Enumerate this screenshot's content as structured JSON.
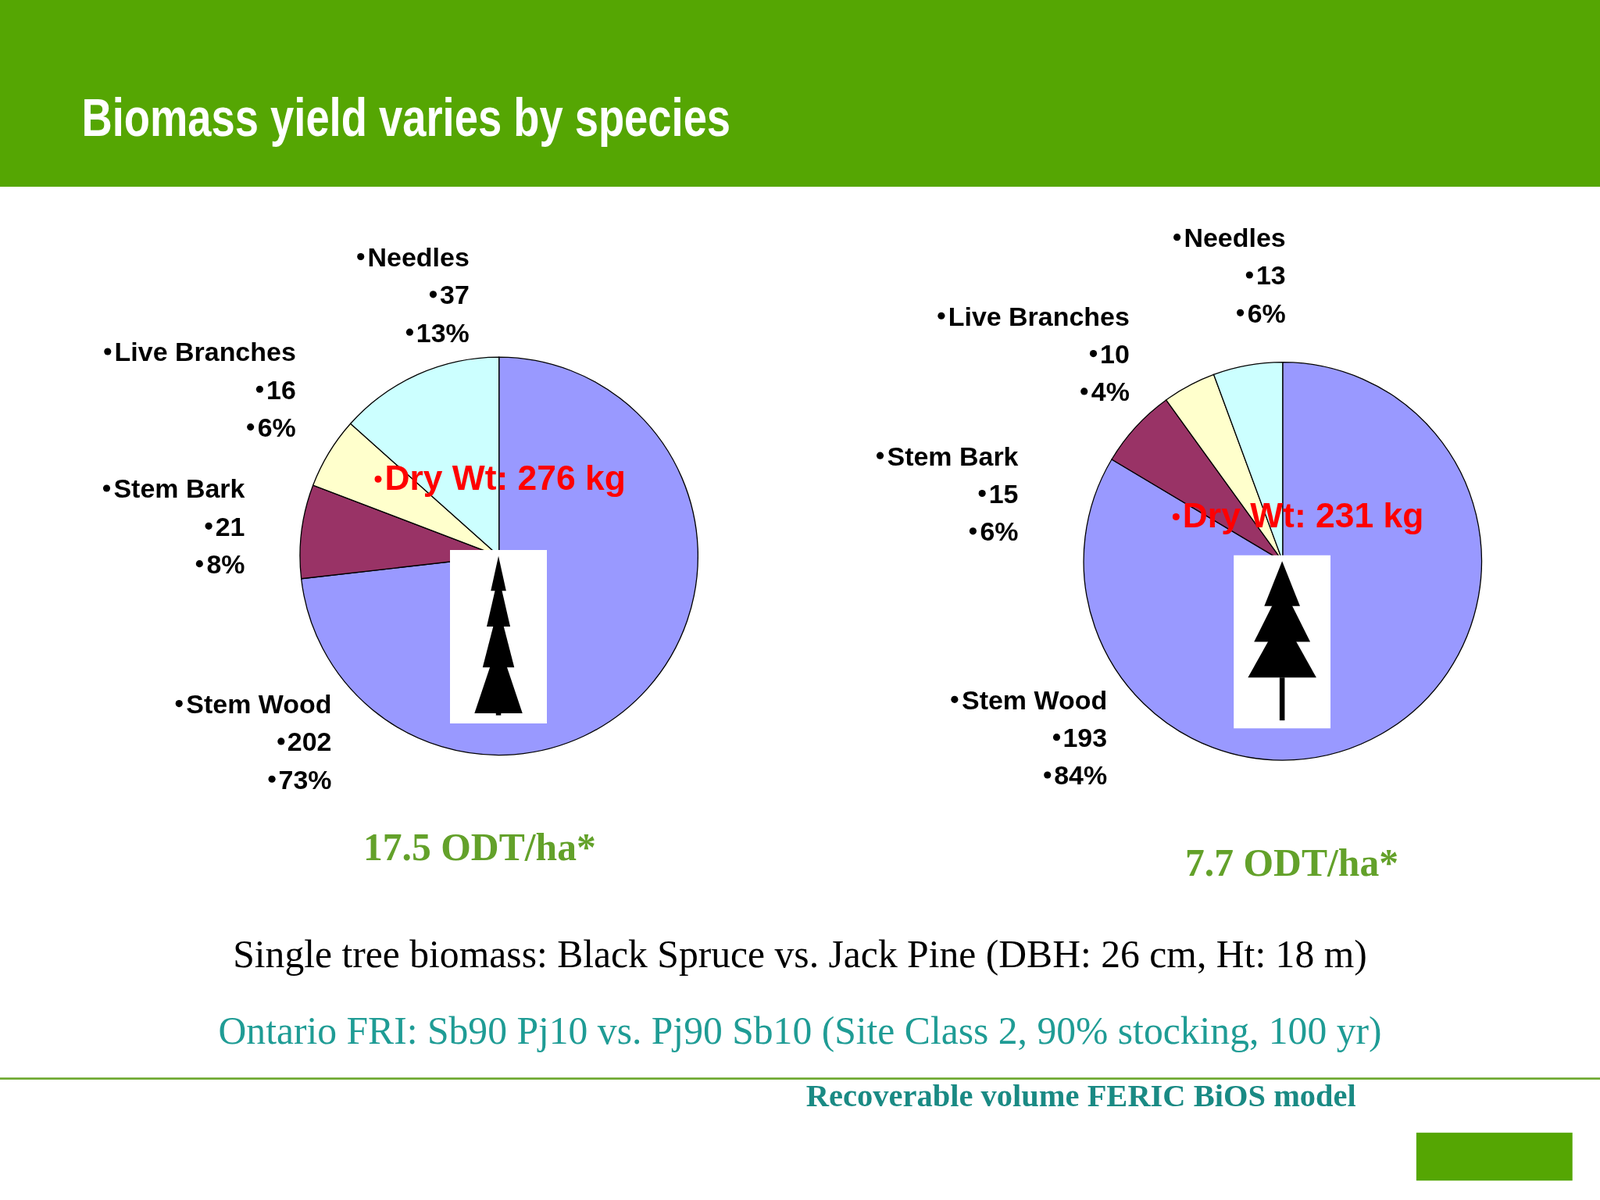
{
  "title": "Biomass yield varies by species",
  "chart_data": [
    {
      "type": "pie",
      "categories": [
        "Stem Wood",
        "Stem Bark",
        "Live Branches",
        "Needles"
      ],
      "values": [
        202,
        21,
        16,
        37
      ],
      "percent_labels": [
        "73%",
        "8%",
        "6%",
        "13%"
      ],
      "colors": [
        "#9999ff",
        "#993366",
        "#ffffcc",
        "#ccffff"
      ],
      "data_labels": true,
      "annotation": "Dry Wt: 276 kg",
      "subtitle": "17.5 ODT/ha*"
    },
    {
      "type": "pie",
      "categories": [
        "Stem Wood",
        "Stem Bark",
        "Live Branches",
        "Needles"
      ],
      "values": [
        193,
        15,
        10,
        13
      ],
      "percent_labels": [
        "84%",
        "6%",
        "4%",
        "6%"
      ],
      "colors": [
        "#9999ff",
        "#993366",
        "#ffffcc",
        "#ccffff"
      ],
      "data_labels": true,
      "annotation": "Dry Wt: 231 kg",
      "subtitle": "7.7 ODT/ha*"
    }
  ],
  "caption": "Single tree biomass: Black Spruce vs. Jack Pine (DBH: 26 cm, Ht: 18 m)",
  "subcaption": "Ontario FRI: Sb90 Pj10 vs. Pj90 Sb10 (Site Class 2, 90% stocking, 100 yr)",
  "footnote": "Recoverable volume FERIC BiOS model"
}
